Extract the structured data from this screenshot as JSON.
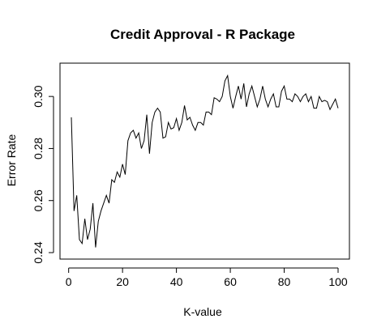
{
  "chart_data": {
    "type": "line",
    "title": "Credit Approval - R Package",
    "xlabel": "K-value",
    "ylabel": "Error Rate",
    "xlim": [
      1,
      100
    ],
    "ylim": [
      0.24,
      0.31
    ],
    "xticks": [
      "0",
      "20",
      "40",
      "60",
      "80",
      "100"
    ],
    "yticks": [
      "0.24",
      "0.26",
      "0.28",
      "0.30"
    ],
    "grid": false,
    "colors": {
      "line": "#000000",
      "axes": "#000000",
      "background": "#ffffff"
    },
    "x": [
      1,
      2,
      3,
      4,
      5,
      6,
      7,
      8,
      9,
      10,
      11,
      12,
      13,
      14,
      15,
      16,
      17,
      18,
      19,
      20,
      21,
      22,
      23,
      24,
      25,
      26,
      27,
      28,
      29,
      30,
      31,
      32,
      33,
      34,
      35,
      36,
      37,
      38,
      39,
      40,
      41,
      42,
      43,
      44,
      45,
      46,
      47,
      48,
      49,
      50,
      51,
      52,
      53,
      54,
      55,
      56,
      57,
      58,
      59,
      60,
      61,
      62,
      63,
      64,
      65,
      66,
      67,
      68,
      69,
      70,
      71,
      72,
      73,
      74,
      75,
      76,
      77,
      78,
      79,
      80,
      81,
      82,
      83,
      84,
      85,
      86,
      87,
      88,
      89,
      90,
      91,
      92,
      93,
      94,
      95,
      96,
      97,
      98,
      99,
      100
    ],
    "series": [
      {
        "values": [
          0.292,
          0.256,
          0.262,
          0.245,
          0.2435,
          0.253,
          0.245,
          0.249,
          0.259,
          0.242,
          0.252,
          0.256,
          0.259,
          0.262,
          0.259,
          0.268,
          0.267,
          0.271,
          0.269,
          0.274,
          0.27,
          0.283,
          0.286,
          0.287,
          0.284,
          0.286,
          0.28,
          0.283,
          0.293,
          0.278,
          0.29,
          0.294,
          0.2955,
          0.294,
          0.284,
          0.2845,
          0.29,
          0.2875,
          0.288,
          0.2915,
          0.287,
          0.29,
          0.2965,
          0.291,
          0.292,
          0.289,
          0.287,
          0.29,
          0.29,
          0.289,
          0.294,
          0.294,
          0.293,
          0.2995,
          0.299,
          0.298,
          0.3,
          0.306,
          0.308,
          0.3,
          0.2955,
          0.3,
          0.304,
          0.299,
          0.305,
          0.296,
          0.301,
          0.304,
          0.3,
          0.296,
          0.299,
          0.304,
          0.299,
          0.296,
          0.299,
          0.301,
          0.296,
          0.296,
          0.302,
          0.304,
          0.299,
          0.299,
          0.298,
          0.301,
          0.3,
          0.298,
          0.3,
          0.301,
          0.298,
          0.3,
          0.2955,
          0.2955,
          0.3,
          0.298,
          0.2985,
          0.298,
          0.295,
          0.297,
          0.299,
          0.2955
        ]
      }
    ]
  }
}
